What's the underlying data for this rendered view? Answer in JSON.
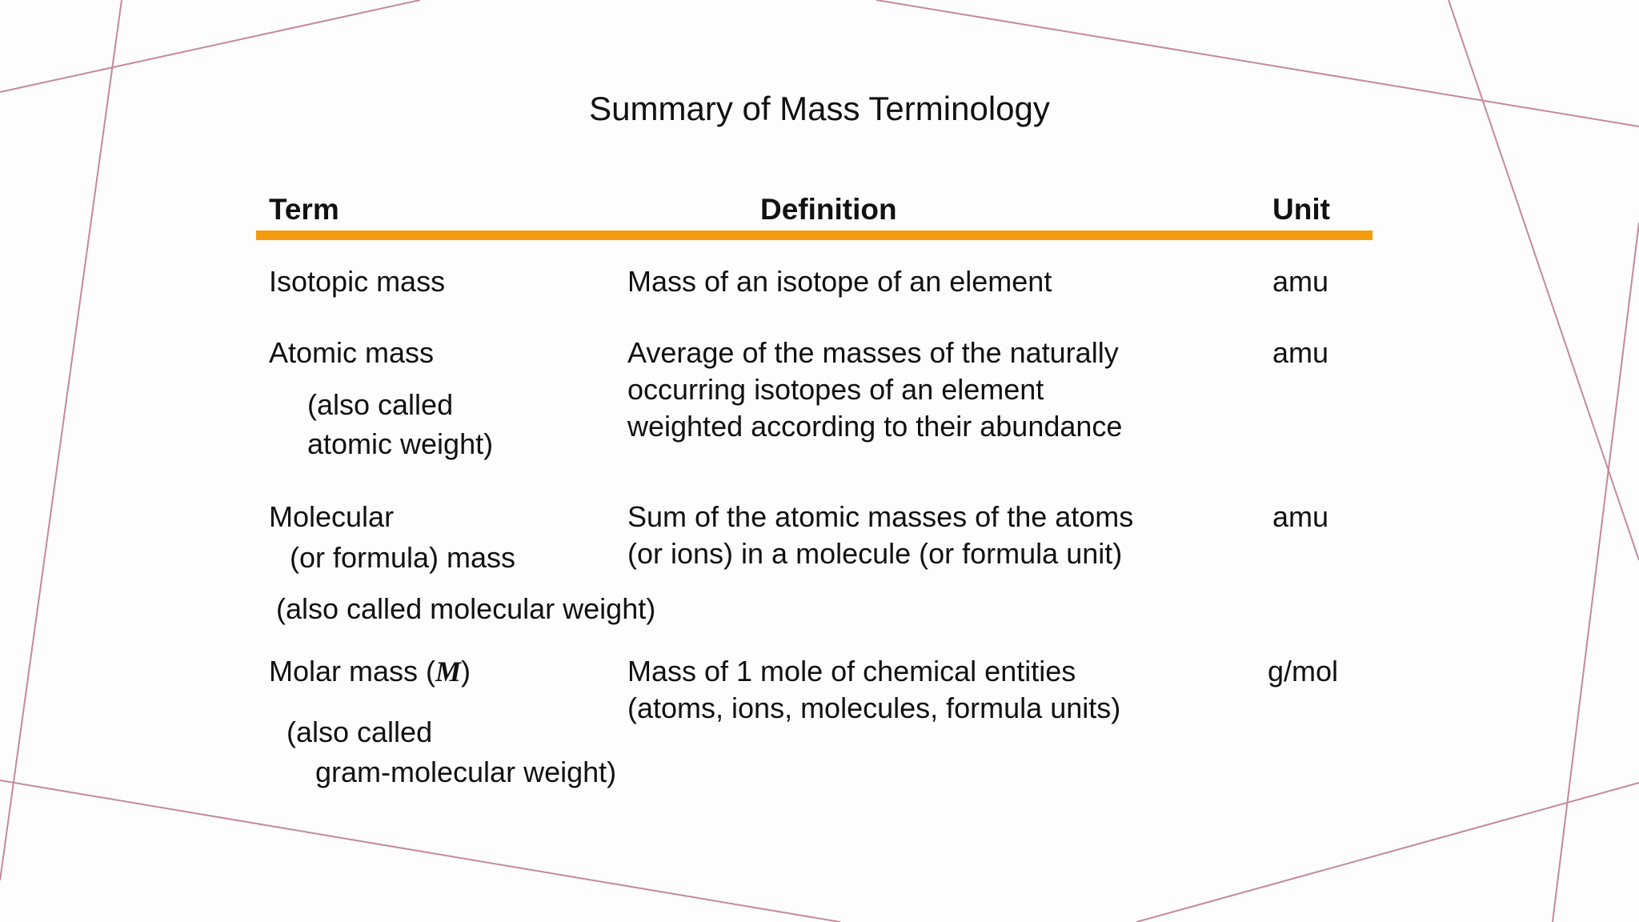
{
  "title": "Summary of Mass Terminology",
  "table": {
    "headers": {
      "term": "Term",
      "definition": "Definition",
      "unit": "Unit"
    },
    "rows": [
      {
        "term": "Isotopic mass",
        "definition": "Mass of an isotope of an element",
        "unit": "amu"
      },
      {
        "term": "Atomic mass",
        "note_line1": "(also called",
        "note_line2": "atomic weight)",
        "definition_line1": "Average of the masses of the naturally",
        "definition_line2": "occurring isotopes of an element",
        "definition_line3": "weighted according to their abundance",
        "unit": "amu"
      },
      {
        "term_line1": "Molecular",
        "term_line2": "(or formula) mass",
        "note": "(also called molecular weight)",
        "definition_line1": "Sum of the atomic masses of the atoms",
        "definition_line2": "(or ions) in a molecule (or formula unit)",
        "unit": "amu"
      },
      {
        "term_prefix": "Molar mass (",
        "term_symbol": "M",
        "term_suffix": ")",
        "note_line1": "(also called",
        "note_line2": "gram-molecular weight)",
        "definition_line1": "Mass of 1 mole of chemical entities",
        "definition_line2": "(atoms, ions, molecules, formula units)",
        "unit": "g/mol"
      }
    ]
  },
  "colors": {
    "header_rule": "#f59c0e",
    "decorative_lines": "#c48a98",
    "text": "#111111",
    "background": "#fdfdfe"
  }
}
